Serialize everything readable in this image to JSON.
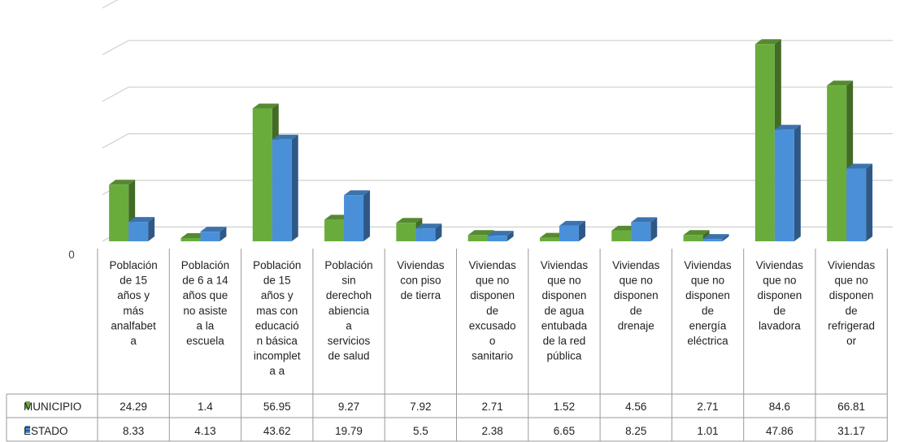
{
  "chart_data": {
    "type": "bar",
    "categories": [
      [
        "Población",
        "de 15",
        "años y",
        "más",
        "analfabet",
        "a"
      ],
      [
        "Población",
        "de 6 a 14",
        "años que",
        "no asiste",
        "a la",
        "escuela"
      ],
      [
        "Población",
        "de 15",
        "años y",
        "mas con",
        "educació",
        "n básica",
        "incomplet",
        "a a"
      ],
      [
        "Población",
        "sin",
        "derechoh",
        "abiencia",
        "a",
        "servicios",
        "de salud"
      ],
      [
        "Viviendas",
        "con  piso",
        "de tierra"
      ],
      [
        "Viviendas",
        "que no",
        "disponen",
        "de",
        "excusado",
        "o",
        "sanitario"
      ],
      [
        "Viviendas",
        "que no",
        "disponen",
        "de agua",
        "entubada",
        "de la red",
        "pública"
      ],
      [
        "Viviendas",
        "que no",
        "disponen",
        "de",
        "drenaje"
      ],
      [
        "Viviendas",
        "que no",
        "disponen",
        "de",
        "energía",
        "eléctrica"
      ],
      [
        "Viviendas",
        "que no",
        "disponen",
        "de",
        "lavadora"
      ],
      [
        "Viviendas",
        "que no",
        "disponen",
        "de",
        "refrigerad",
        "or"
      ]
    ],
    "series": [
      {
        "name": "MUNICIPIO",
        "color": "#6aac3c",
        "values": [
          24.29,
          1.4,
          56.95,
          9.27,
          7.92,
          2.71,
          1.52,
          4.56,
          2.71,
          84.6,
          66.81
        ],
        "labels": [
          "24.29",
          "1.4",
          "56.95",
          "9.27",
          "7.92",
          "2.71",
          "1.52",
          "4.56",
          "2.71",
          "84.6",
          "66.81"
        ]
      },
      {
        "name": "ESTADO",
        "color": "#4a90d9",
        "values": [
          8.33,
          4.13,
          43.62,
          19.79,
          5.5,
          2.38,
          6.65,
          8.25,
          1.01,
          47.86,
          31.17
        ],
        "labels": [
          "8.33",
          "4.13",
          "43.62",
          "19.79",
          "5.5",
          "2.38",
          "6.65",
          "8.25",
          "1.01",
          "47.86",
          "31.17"
        ]
      }
    ],
    "ylim": [
      0,
      100
    ],
    "gridlines": 5,
    "grid": true,
    "y_axis_label_zero": "0",
    "legend": "data-table",
    "style": "3d-clustered-column"
  }
}
